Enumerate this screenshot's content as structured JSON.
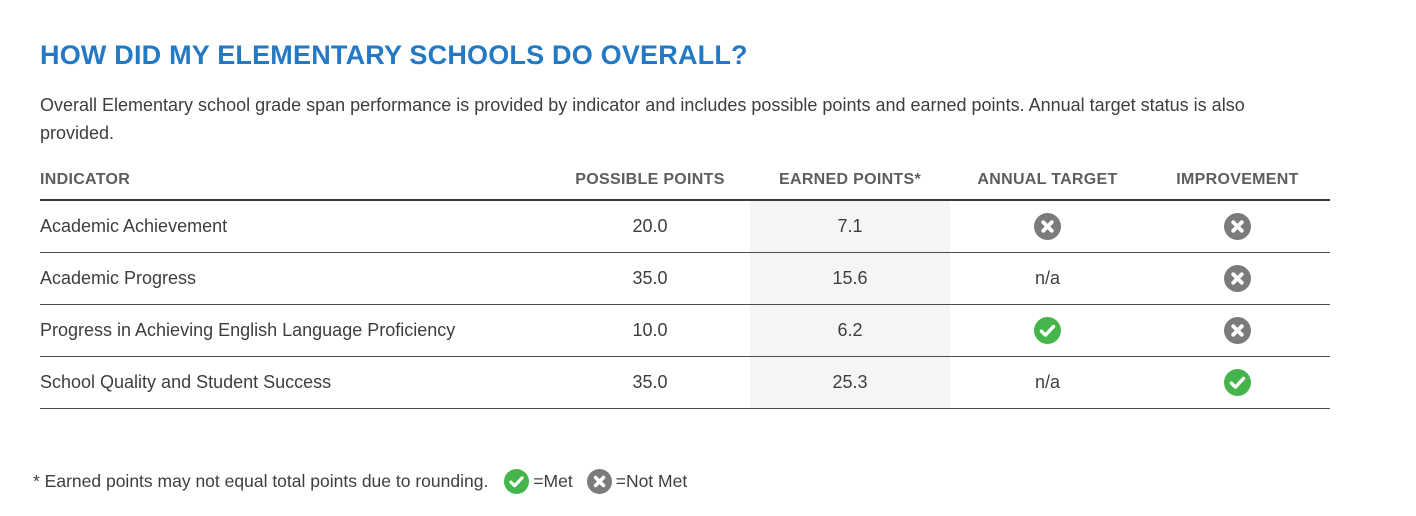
{
  "page": {
    "title": "HOW DID MY ELEMENTARY SCHOOLS DO OVERALL?",
    "description": "Overall Elementary school grade span performance is provided by indicator and includes possible points and earned points. Annual target status is also provided."
  },
  "table": {
    "columns": [
      "INDICATOR",
      "POSSIBLE POINTS",
      "EARNED POINTS*",
      "ANNUAL TARGET",
      "IMPROVEMENT"
    ],
    "rows": [
      {
        "indicator": "Academic Achievement",
        "possible_points": "20.0",
        "earned_points": "7.1",
        "annual_target": "not-met",
        "improvement": "not-met"
      },
      {
        "indicator": "Academic Progress",
        "possible_points": "35.0",
        "earned_points": "15.6",
        "annual_target": "n/a",
        "improvement": "not-met"
      },
      {
        "indicator": "Progress in Achieving English Language Proficiency",
        "possible_points": "10.0",
        "earned_points": "6.2",
        "annual_target": "met",
        "improvement": "not-met"
      },
      {
        "indicator": "School Quality and Student Success",
        "possible_points": "35.0",
        "earned_points": "25.3",
        "annual_target": "n/a",
        "improvement": "met"
      }
    ]
  },
  "footnote": {
    "text": "* Earned points may not equal total points due to rounding.",
    "met_label": "=Met",
    "not_met_label": "=Not Met"
  },
  "icons": {
    "met": "check-circle-icon",
    "not_met": "x-circle-icon"
  },
  "colors": {
    "heading": "#2379c4",
    "met": "#45b54b",
    "not_met": "#7b7b7b",
    "earned_column_background": "#f5f5f5"
  }
}
